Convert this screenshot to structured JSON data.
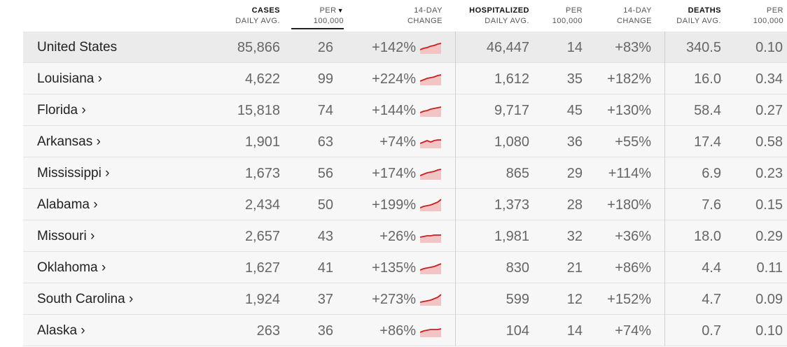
{
  "header": {
    "cases": {
      "l1": "CASES",
      "l2": "DAILY AVG."
    },
    "cases_per": {
      "l1": "PER",
      "l2": "100,000",
      "sort_icon": "triangle-down"
    },
    "cases_change": {
      "l1": "14-DAY",
      "l2": "CHANGE"
    },
    "hosp": {
      "l1": "HOSPITALIZED",
      "l2": "DAILY AVG."
    },
    "hosp_per": {
      "l1": "PER",
      "l2": "100,000"
    },
    "hosp_change": {
      "l1": "14-DAY",
      "l2": "CHANGE"
    },
    "deaths": {
      "l1": "DEATHS",
      "l2": "DAILY AVG."
    },
    "deaths_per": {
      "l1": "PER",
      "l2": "100,000"
    }
  },
  "colors": {
    "sparkline": "#cc1f1f",
    "spark_fill": "#f2c4c4"
  },
  "rows": [
    {
      "name": "United States",
      "cases": "85,866",
      "cases_per": "26",
      "cases_change": "+142%",
      "hosp": "46,447",
      "hosp_per": "14",
      "hosp_change": "+83%",
      "deaths": "340.5",
      "deaths_per": "0.10"
    },
    {
      "name": "Louisiana ›",
      "cases": "4,622",
      "cases_per": "99",
      "cases_change": "+224%",
      "hosp": "1,612",
      "hosp_per": "35",
      "hosp_change": "+182%",
      "deaths": "16.0",
      "deaths_per": "0.34"
    },
    {
      "name": "Florida ›",
      "cases": "15,818",
      "cases_per": "74",
      "cases_change": "+144%",
      "hosp": "9,717",
      "hosp_per": "45",
      "hosp_change": "+130%",
      "deaths": "58.4",
      "deaths_per": "0.27"
    },
    {
      "name": "Arkansas ›",
      "cases": "1,901",
      "cases_per": "63",
      "cases_change": "+74%",
      "hosp": "1,080",
      "hosp_per": "36",
      "hosp_change": "+55%",
      "deaths": "17.4",
      "deaths_per": "0.58"
    },
    {
      "name": "Mississippi ›",
      "cases": "1,673",
      "cases_per": "56",
      "cases_change": "+174%",
      "hosp": "865",
      "hosp_per": "29",
      "hosp_change": "+114%",
      "deaths": "6.9",
      "deaths_per": "0.23"
    },
    {
      "name": "Alabama ›",
      "cases": "2,434",
      "cases_per": "50",
      "cases_change": "+199%",
      "hosp": "1,373",
      "hosp_per": "28",
      "hosp_change": "+180%",
      "deaths": "7.6",
      "deaths_per": "0.15"
    },
    {
      "name": "Missouri ›",
      "cases": "2,657",
      "cases_per": "43",
      "cases_change": "+26%",
      "hosp": "1,981",
      "hosp_per": "32",
      "hosp_change": "+36%",
      "deaths": "18.0",
      "deaths_per": "0.29"
    },
    {
      "name": "Oklahoma ›",
      "cases": "1,627",
      "cases_per": "41",
      "cases_change": "+135%",
      "hosp": "830",
      "hosp_per": "21",
      "hosp_change": "+86%",
      "deaths": "4.4",
      "deaths_per": "0.11"
    },
    {
      "name": "South Carolina ›",
      "cases": "1,924",
      "cases_per": "37",
      "cases_change": "+273%",
      "hosp": "599",
      "hosp_per": "12",
      "hosp_change": "+152%",
      "deaths": "4.7",
      "deaths_per": "0.09"
    },
    {
      "name": "Alaska ›",
      "cases": "263",
      "cases_per": "36",
      "cases_change": "+86%",
      "hosp": "104",
      "hosp_per": "14",
      "hosp_change": "+74%",
      "deaths": "0.7",
      "deaths_per": "0.10"
    }
  ]
}
